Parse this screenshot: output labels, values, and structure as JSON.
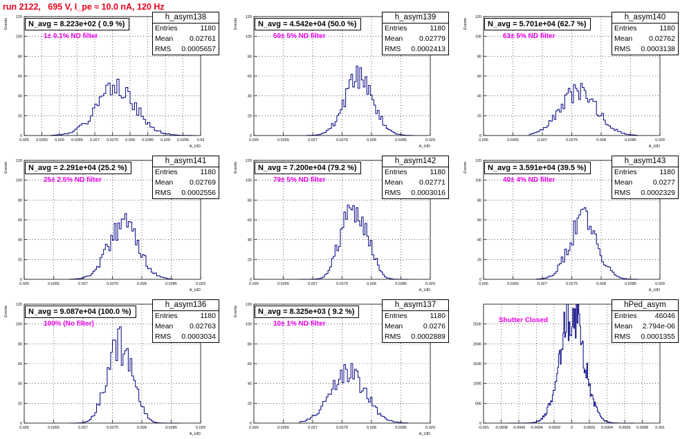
{
  "run_title": "run 2122,   695 V, I_pe ≈ 10.0 nA, 120 Hz",
  "stats_labels": {
    "entries": "Entries",
    "mean": "Mean",
    "rms": "RMS"
  },
  "chart_data": [
    {
      "type": "bar",
      "name": "h_asym138",
      "navg": "N_avg = 8.223e+02 ( 0.9 %)",
      "filter": "1± 0.1% ND filter",
      "ylabel": "Events",
      "xlabel": "A_UID",
      "stats": {
        "entries": "1180",
        "mean": "0.02761",
        "rms": "0.0005657"
      },
      "xlim": [
        0.025,
        0.03
      ],
      "ylim": [
        0,
        120
      ],
      "xticks": [
        "0.025",
        "0.0255",
        "0.026",
        "0.0265",
        "0.027",
        "0.0275",
        "0.028",
        "0.0285",
        "0.029",
        "0.0295",
        "0.03"
      ],
      "yticks": [
        "0",
        "20",
        "40",
        "60",
        "80",
        "100",
        "120"
      ],
      "hist": {
        "center": 0.02761,
        "sigma": 0.00056,
        "peak": 46,
        "bins": 80,
        "seed": 1,
        "range": [
          0.0258,
          0.0298
        ]
      }
    },
    {
      "type": "bar",
      "name": "h_asym139",
      "navg": "N_avg = 4.542e+04 (50.0 %)",
      "filter": "50± 5% ND filter",
      "ylabel": "Events",
      "xlabel": "A_UID",
      "stats": {
        "entries": "1180",
        "mean": "0.02779",
        "rms": "0.0002413"
      },
      "xlim": [
        0.026,
        0.029
      ],
      "ylim": [
        0,
        120
      ],
      "xticks": [
        "0.026",
        "0.0265",
        "0.027",
        "0.0275",
        "0.028",
        "0.0285",
        "0.029"
      ],
      "yticks": [
        "0",
        "20",
        "40",
        "60",
        "80",
        "100",
        "120"
      ],
      "hist": {
        "center": 0.02779,
        "sigma": 0.00024,
        "peak": 58,
        "bins": 100,
        "seed": 2,
        "range": [
          0.0269,
          0.0287
        ]
      }
    },
    {
      "type": "bar",
      "name": "h_asym140",
      "navg": "N_avg = 5.701e+04 (62.7 %)",
      "filter": "63± 5% ND filter",
      "ylabel": "Events",
      "xlabel": "A_UID",
      "stats": {
        "entries": "1180",
        "mean": "0.02762",
        "rms": "0.0003138"
      },
      "xlim": [
        0.026,
        0.029
      ],
      "ylim": [
        0,
        120
      ],
      "xticks": [
        "0.026",
        "0.0265",
        "0.027",
        "0.0275",
        "0.028",
        "0.0285",
        "0.029"
      ],
      "yticks": [
        "0",
        "20",
        "40",
        "60",
        "80",
        "100",
        "120"
      ],
      "hist": {
        "center": 0.02762,
        "sigma": 0.00031,
        "peak": 44,
        "bins": 100,
        "seed": 3,
        "range": [
          0.0268,
          0.0286
        ]
      }
    },
    {
      "type": "bar",
      "name": "h_asym141",
      "navg": "N_avg = 2.291e+04 (25.2 %)",
      "filter": "25± 2.5% ND filter",
      "ylabel": "Events",
      "xlabel": "A_UID",
      "stats": {
        "entries": "1180",
        "mean": "0.02769",
        "rms": "0.0002556"
      },
      "xlim": [
        0.026,
        0.029
      ],
      "ylim": [
        0,
        120
      ],
      "xticks": [
        "0.026",
        "0.0265",
        "0.027",
        "0.0275",
        "0.028",
        "0.0285",
        "0.029"
      ],
      "yticks": [
        "0",
        "20",
        "40",
        "60",
        "80",
        "100",
        "120"
      ],
      "hist": {
        "center": 0.02769,
        "sigma": 0.000256,
        "peak": 56,
        "bins": 100,
        "seed": 4,
        "range": [
          0.0268,
          0.0285
        ]
      }
    },
    {
      "type": "bar",
      "name": "h_asym142",
      "navg": "N_avg = 7.200e+04 (79.2 %)",
      "filter": "79± 5% ND filter",
      "ylabel": "Events",
      "xlabel": "A_UID",
      "stats": {
        "entries": "1180",
        "mean": "0.02771",
        "rms": "0.0003016"
      },
      "xlim": [
        0.026,
        0.029
      ],
      "ylim": [
        0,
        120
      ],
      "xticks": [
        "0.026",
        "0.0265",
        "0.027",
        "0.0275",
        "0.028",
        "0.0285",
        "0.029"
      ],
      "yticks": [
        "0",
        "20",
        "40",
        "60",
        "80",
        "100",
        "120"
      ],
      "hist": {
        "center": 0.02771,
        "sigma": 0.0003,
        "peak": 52,
        "bins": 100,
        "seed": 5,
        "range": [
          0.0268,
          0.0286
        ],
        "bimodal": 0.00026
      }
    },
    {
      "type": "bar",
      "name": "h_asym143",
      "navg": "N_avg = 3.591e+04 (39.5 %)",
      "filter": "40± 4% ND filter",
      "ylabel": "Events",
      "xlabel": "A_UID",
      "stats": {
        "entries": "1180",
        "mean": "0.0277",
        "rms": "0.0002329"
      },
      "xlim": [
        0.026,
        0.029
      ],
      "ylim": [
        0,
        120
      ],
      "xticks": [
        "0.026",
        "0.0265",
        "0.027",
        "0.0275",
        "0.028",
        "0.0285",
        "0.029"
      ],
      "yticks": [
        "0",
        "20",
        "40",
        "60",
        "80",
        "100",
        "120"
      ],
      "hist": {
        "center": 0.0277,
        "sigma": 0.000233,
        "peak": 62,
        "bins": 100,
        "seed": 6,
        "range": [
          0.0269,
          0.0286
        ]
      }
    },
    {
      "type": "bar",
      "name": "h_asym136",
      "navg": "N_avg = 9.087e+04 (100.0 %)",
      "filter": "100% (No filter)",
      "ylabel": "Events",
      "xlabel": "A_UID",
      "stats": {
        "entries": "1180",
        "mean": "0.02763",
        "rms": "0.0003034"
      },
      "xlim": [
        0.026,
        0.029
      ],
      "ylim": [
        0,
        120
      ],
      "xticks": [
        "0.026",
        "0.0265",
        "0.027",
        "0.0275",
        "0.028",
        "0.0285",
        "0.029"
      ],
      "yticks": [
        "0",
        "20",
        "40",
        "60",
        "80",
        "100",
        "120"
      ],
      "hist": {
        "center": 0.02763,
        "sigma": 0.0003,
        "peak": 56,
        "bins": 100,
        "seed": 7,
        "range": [
          0.0268,
          0.0286
        ],
        "bimodal": 0.00026
      }
    },
    {
      "type": "bar",
      "name": "h_asym137",
      "navg": "N_avg = 8.325e+03 ( 9.2 %)",
      "filter": "10± 1% ND filter",
      "ylabel": "Events",
      "xlabel": "A_UID",
      "stats": {
        "entries": "1180",
        "mean": "0.0276",
        "rms": "0.0002889"
      },
      "xlim": [
        0.026,
        0.029
      ],
      "ylim": [
        0,
        120
      ],
      "xticks": [
        "0.026",
        "0.0265",
        "0.027",
        "0.0275",
        "0.028",
        "0.0285",
        "0.029"
      ],
      "yticks": [
        "0",
        "20",
        "40",
        "60",
        "80",
        "100",
        "120"
      ],
      "hist": {
        "center": 0.0276,
        "sigma": 0.00029,
        "peak": 54,
        "bins": 100,
        "seed": 8,
        "range": [
          0.0268,
          0.0286
        ]
      }
    },
    {
      "type": "bar",
      "name": "hPed_asym",
      "navg": "",
      "filter": "Shutter Closed",
      "ylabel": "",
      "xlabel": "",
      "stats": {
        "entries": "46046",
        "mean": "2.794e-06",
        "rms": "0.0001355"
      },
      "xlim": [
        -0.001,
        0.001
      ],
      "ylim": [
        0,
        3000
      ],
      "xticks": [
        "-0.001",
        "-0.0008",
        "-0.0006",
        "-0.0004",
        "-0.0002",
        "0",
        "0.0002",
        "0.0004",
        "0.0006",
        "0.0008",
        "0.001"
      ],
      "yticks": [
        "0",
        "500",
        "1000",
        "1500",
        "2000",
        "2500"
      ],
      "hist": {
        "center": 2.8e-06,
        "sigma": 0.000135,
        "peak": 2850,
        "bins": 200,
        "seed": 9,
        "range": [
          -0.0007,
          0.0007
        ]
      }
    }
  ]
}
